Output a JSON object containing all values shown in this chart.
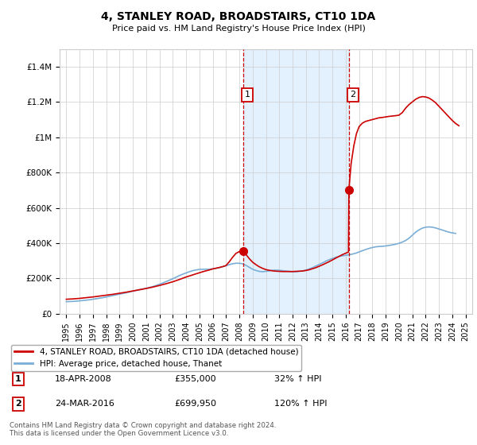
{
  "title": "4, STANLEY ROAD, BROADSTAIRS, CT10 1DA",
  "subtitle": "Price paid vs. HM Land Registry's House Price Index (HPI)",
  "ylim": [
    0,
    1500000
  ],
  "yticks": [
    0,
    200000,
    400000,
    600000,
    800000,
    1000000,
    1200000,
    1400000
  ],
  "ytick_labels": [
    "£0",
    "£200K",
    "£400K",
    "£600K",
    "£800K",
    "£1M",
    "£1.2M",
    "£1.4M"
  ],
  "xlim_start": 1994.5,
  "xlim_end": 2025.5,
  "xticks": [
    1995,
    1996,
    1997,
    1998,
    1999,
    2000,
    2001,
    2002,
    2003,
    2004,
    2005,
    2006,
    2007,
    2008,
    2009,
    2010,
    2011,
    2012,
    2013,
    2014,
    2015,
    2016,
    2017,
    2018,
    2019,
    2020,
    2021,
    2022,
    2023,
    2024,
    2025
  ],
  "purchase_color": "#cc0000",
  "hpi_color": "#7aaed6",
  "shaded_region_color": "#ddeeff",
  "grid_color": "#cccccc",
  "purchase1_x": 2008.3,
  "purchase1_y": 355000,
  "purchase2_x": 2016.23,
  "purchase2_y": 699950,
  "legend_label1": "4, STANLEY ROAD, BROADSTAIRS, CT10 1DA (detached house)",
  "legend_label2": "HPI: Average price, detached house, Thanet",
  "table_row1": [
    "1",
    "18-APR-2008",
    "£355,000",
    "32% ↑ HPI"
  ],
  "table_row2": [
    "2",
    "24-MAR-2016",
    "£699,950",
    "120% ↑ HPI"
  ],
  "footnote": "Contains HM Land Registry data © Crown copyright and database right 2024.\nThis data is licensed under the Open Government Licence v3.0.",
  "hpi_line": {
    "years": [
      1995,
      1995.25,
      1995.5,
      1995.75,
      1996,
      1996.25,
      1996.5,
      1996.75,
      1997,
      1997.25,
      1997.5,
      1997.75,
      1998,
      1998.25,
      1998.5,
      1998.75,
      1999,
      1999.25,
      1999.5,
      1999.75,
      2000,
      2000.25,
      2000.5,
      2000.75,
      2001,
      2001.25,
      2001.5,
      2001.75,
      2002,
      2002.25,
      2002.5,
      2002.75,
      2003,
      2003.25,
      2003.5,
      2003.75,
      2004,
      2004.25,
      2004.5,
      2004.75,
      2005,
      2005.25,
      2005.5,
      2005.75,
      2006,
      2006.25,
      2006.5,
      2006.75,
      2007,
      2007.25,
      2007.5,
      2007.75,
      2008,
      2008.25,
      2008.5,
      2008.75,
      2009,
      2009.25,
      2009.5,
      2009.75,
      2010,
      2010.25,
      2010.5,
      2010.75,
      2011,
      2011.25,
      2011.5,
      2011.75,
      2012,
      2012.25,
      2012.5,
      2012.75,
      2013,
      2013.25,
      2013.5,
      2013.75,
      2014,
      2014.25,
      2014.5,
      2014.75,
      2015,
      2015.25,
      2015.5,
      2015.75,
      2016,
      2016.25,
      2016.5,
      2016.75,
      2017,
      2017.25,
      2017.5,
      2017.75,
      2018,
      2018.25,
      2018.5,
      2018.75,
      2019,
      2019.25,
      2019.5,
      2019.75,
      2020,
      2020.25,
      2020.5,
      2020.75,
      2021,
      2021.25,
      2021.5,
      2021.75,
      2022,
      2022.25,
      2022.5,
      2022.75,
      2023,
      2023.25,
      2023.5,
      2023.75,
      2024,
      2024.25
    ],
    "values": [
      68000,
      69000,
      70000,
      71000,
      73000,
      75000,
      77000,
      79000,
      82000,
      85000,
      88000,
      91000,
      95000,
      99000,
      103000,
      107000,
      111000,
      115000,
      119000,
      123000,
      128000,
      132000,
      136000,
      140000,
      144000,
      149000,
      154000,
      160000,
      167000,
      174000,
      182000,
      190000,
      198000,
      207000,
      216000,
      224000,
      231000,
      238000,
      244000,
      248000,
      251000,
      252000,
      252000,
      252000,
      254000,
      257000,
      261000,
      266000,
      272000,
      278000,
      283000,
      286000,
      286000,
      283000,
      274000,
      263000,
      252000,
      245000,
      240000,
      238000,
      240000,
      243000,
      246000,
      247000,
      246000,
      244000,
      242000,
      240000,
      238000,
      238000,
      240000,
      243000,
      247000,
      254000,
      261000,
      270000,
      279000,
      288000,
      298000,
      306000,
      313000,
      320000,
      325000,
      328000,
      331000,
      334000,
      338000,
      343000,
      350000,
      357000,
      364000,
      370000,
      375000,
      379000,
      381000,
      382000,
      384000,
      387000,
      390000,
      394000,
      399000,
      406000,
      415000,
      428000,
      445000,
      462000,
      475000,
      485000,
      490000,
      492000,
      490000,
      486000,
      480000,
      474000,
      468000,
      462000,
      458000,
      455000
    ]
  },
  "price_paid_line": {
    "years": [
      1995,
      1995.5,
      1996,
      1996.5,
      1997,
      1997.5,
      1998,
      1998.5,
      1999,
      1999.5,
      2000,
      2000.5,
      2001,
      2001.5,
      2002,
      2002.5,
      2003,
      2003.5,
      2004,
      2004.5,
      2005,
      2005.25,
      2005.5,
      2005.75,
      2006,
      2006.25,
      2006.5,
      2006.75,
      2007,
      2007.25,
      2007.5,
      2007.75,
      2008.0,
      2008.1,
      2008.2,
      2008.3,
      2008.4,
      2008.5,
      2008.75,
      2009,
      2009.25,
      2009.5,
      2009.75,
      2010,
      2010.25,
      2010.5,
      2010.75,
      2011,
      2011.25,
      2011.5,
      2011.75,
      2012,
      2012.25,
      2012.5,
      2012.75,
      2013,
      2013.25,
      2013.5,
      2013.75,
      2014,
      2014.25,
      2014.5,
      2014.75,
      2015,
      2015.25,
      2015.5,
      2015.75,
      2016.0,
      2016.1,
      2016.2,
      2016.23,
      2016.4,
      2016.6,
      2016.8,
      2017,
      2017.25,
      2017.5,
      2017.75,
      2018,
      2018.25,
      2018.5,
      2018.75,
      2019,
      2019.25,
      2019.5,
      2019.75,
      2020,
      2020.25,
      2020.5,
      2020.75,
      2021,
      2021.25,
      2021.5,
      2021.75,
      2022,
      2022.25,
      2022.5,
      2022.75,
      2023,
      2023.25,
      2023.5,
      2023.75,
      2024,
      2024.25,
      2024.5
    ],
    "values": [
      82000,
      84000,
      87000,
      91000,
      95000,
      100000,
      105000,
      110000,
      116000,
      122000,
      129000,
      136000,
      143000,
      151000,
      160000,
      170000,
      181000,
      194000,
      208000,
      220000,
      232000,
      238000,
      243000,
      248000,
      254000,
      258000,
      262000,
      267000,
      273000,
      295000,
      320000,
      342000,
      352000,
      354000,
      355000,
      355000,
      348000,
      336000,
      312000,
      292000,
      278000,
      266000,
      257000,
      250000,
      246000,
      243000,
      241000,
      240000,
      239000,
      239000,
      239000,
      239000,
      240000,
      241000,
      242000,
      245000,
      249000,
      255000,
      261000,
      269000,
      277000,
      286000,
      295000,
      305000,
      315000,
      325000,
      335000,
      343000,
      346000,
      349000,
      699950,
      850000,
      950000,
      1020000,
      1060000,
      1080000,
      1090000,
      1095000,
      1100000,
      1105000,
      1110000,
      1112000,
      1115000,
      1118000,
      1120000,
      1122000,
      1125000,
      1140000,
      1165000,
      1185000,
      1200000,
      1215000,
      1225000,
      1230000,
      1228000,
      1222000,
      1210000,
      1195000,
      1175000,
      1155000,
      1135000,
      1115000,
      1095000,
      1078000,
      1065000
    ]
  }
}
